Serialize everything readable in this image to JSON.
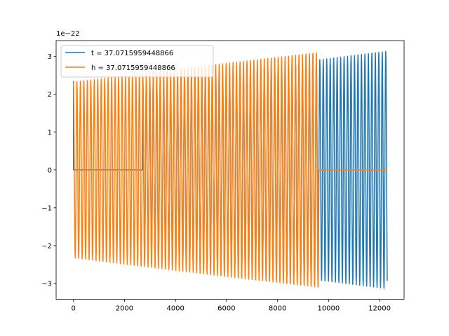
{
  "chart_data": {
    "type": "line",
    "title": "",
    "xlabel": "",
    "ylabel": "",
    "offset_text": "1e−22",
    "xlim": [
      -680,
      12960
    ],
    "ylim": [
      -3.42,
      3.42
    ],
    "xticks": [
      0,
      2000,
      4000,
      6000,
      8000,
      10000,
      12000
    ],
    "xtick_labels": [
      "0",
      "2000",
      "4000",
      "6000",
      "8000",
      "10000",
      "12000"
    ],
    "yticks": [
      -3,
      -2,
      -1,
      0,
      1,
      2,
      3
    ],
    "ytick_labels": [
      "−3",
      "−2",
      "−1",
      "0",
      "1",
      "2",
      "3"
    ],
    "grid": false,
    "legend_position": "upper-left",
    "series": [
      {
        "name": "t = 37.0715959448866",
        "color": "#1f77b4",
        "segments": [
          {
            "kind": "flat",
            "x": [
              0,
              2720
            ],
            "y": 0
          },
          {
            "kind": "oscillation",
            "x_start": 2720,
            "x_end": 12300,
            "amp_start": 2.32,
            "amp_end": 3.14,
            "period": 136
          }
        ],
        "initial_spike": {
          "x": 0,
          "y": 2.35
        }
      },
      {
        "name": "h = 37.0715959448866",
        "color": "#ff7f0e",
        "segments": [
          {
            "kind": "oscillation",
            "x_start": 0,
            "x_end": 9600,
            "amp_start": 2.32,
            "amp_end": 3.14,
            "period": 136
          },
          {
            "kind": "flat",
            "x": [
              9600,
              12300
            ],
            "y": 0
          }
        ]
      }
    ]
  }
}
